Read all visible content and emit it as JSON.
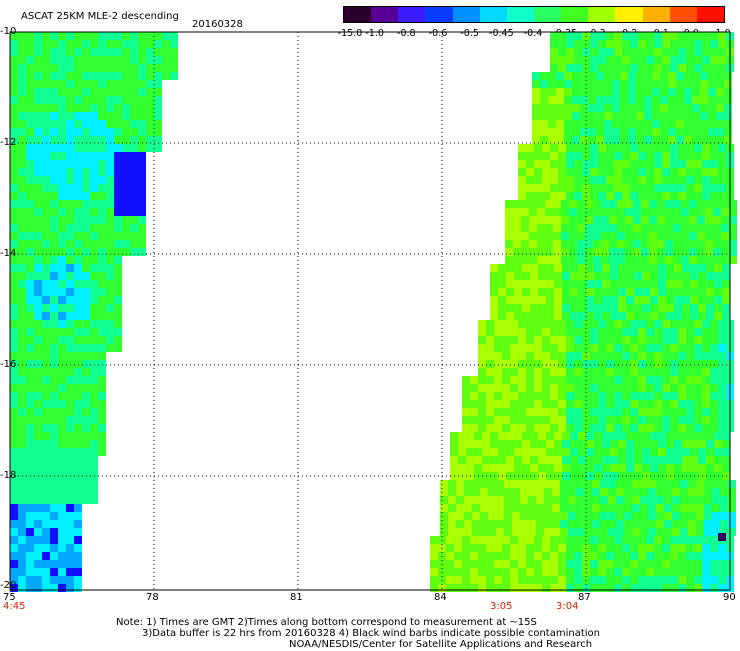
{
  "header": {
    "title": "ASCAT 25KM MLE-2 descending",
    "date": "20160328"
  },
  "colorbar": {
    "labels": [
      "-15.0",
      "-1.0",
      "-0.8",
      "-0.6",
      "-0.5",
      "-0.45",
      "-0.4",
      "-0.35",
      "-0.3",
      "-0.2",
      "-0.1",
      "0.0",
      "1.0"
    ],
    "colors": [
      "#2a002a",
      "#5a009a",
      "#3a1aff",
      "#0a3cff",
      "#0090ff",
      "#00d8ff",
      "#10ffc8",
      "#28ff60",
      "#40ff20",
      "#a0ff00",
      "#fff000",
      "#ffb000",
      "#ff5000",
      "#ff1000"
    ]
  },
  "axes": {
    "lat_labels": [
      "-10",
      "-12",
      "-14",
      "-16",
      "-18",
      "-20"
    ],
    "lon_labels": [
      "75",
      "78",
      "81",
      "84",
      "87",
      "90"
    ]
  },
  "time_labels": [
    "4:45",
    "3:05",
    "3:04"
  ],
  "notes": {
    "line1": "Note: 1) Times are GMT 2)Times along bottom correspond to measurement at ~15S",
    "line2": "3)Data buffer is 22 hrs from 20160328 4) Black wind barbs indicate possible contamination",
    "line3": "NOAA/NESDIS/Center for Satellite Applications and Research"
  },
  "colors": {
    "green": "#20ff20",
    "lime": "#a0ff00",
    "cyan": "#00f8ff",
    "blue": "#0040ff"
  }
}
